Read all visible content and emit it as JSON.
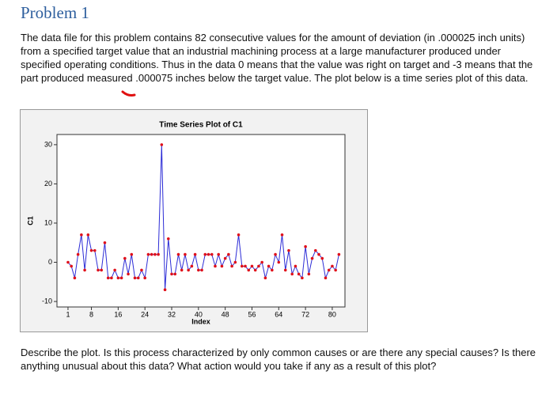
{
  "header": {
    "title": "Problem 1"
  },
  "intro": "The data file for this problem contains 82 consecutive values for the amount of deviation (in .000025 inch units) from a specified target value that an industrial machining process at a large manufacturer produced under specified operating conditions.  Thus in the data 0 means that the value was right on target and -3 means that the part produced measured .000075 inches below the target value.  The plot below is a time series plot of this data.",
  "chart_data": {
    "type": "line",
    "title": "Time Series Plot of C1",
    "x_label": "Index",
    "y_label": "C1",
    "line_color": "#2b2bd6",
    "marker_color": "#e0101a",
    "x": [
      1,
      2,
      3,
      4,
      5,
      6,
      7,
      8,
      9,
      10,
      11,
      12,
      13,
      14,
      15,
      16,
      17,
      18,
      19,
      20,
      21,
      22,
      23,
      24,
      25,
      26,
      27,
      28,
      29,
      30,
      31,
      32,
      33,
      34,
      35,
      36,
      37,
      38,
      39,
      40,
      41,
      42,
      43,
      44,
      45,
      46,
      47,
      48,
      49,
      50,
      51,
      52,
      53,
      54,
      55,
      56,
      57,
      58,
      59,
      60,
      61,
      62,
      63,
      64,
      65,
      66,
      67,
      68,
      69,
      70,
      71,
      72,
      73,
      74,
      75,
      76,
      77,
      78,
      79,
      80,
      81,
      82
    ],
    "values": [
      0,
      -1,
      -4,
      2,
      7,
      -2,
      7,
      3,
      3,
      -2,
      -2,
      5,
      -4,
      -4,
      -2,
      -4,
      -4,
      1,
      -3,
      2,
      -4,
      -4,
      -2,
      -4,
      2,
      2,
      2,
      2,
      30,
      -7,
      6,
      -3,
      -3,
      2,
      -2,
      2,
      -2,
      -1,
      2,
      -2,
      -2,
      2,
      2,
      2,
      -1,
      2,
      -1,
      1,
      2,
      -1,
      0,
      7,
      -1,
      -1,
      -2,
      -1,
      -2,
      -1,
      0,
      -4,
      -1,
      -2,
      2,
      0,
      7,
      -2,
      3,
      -3,
      -1,
      -3,
      -4,
      4,
      -3,
      1,
      3,
      2,
      1,
      -4,
      -2,
      -1,
      -2,
      2
    ],
    "xlim": [
      -2.3,
      83.8
    ],
    "xticks": [
      1,
      8,
      16,
      24,
      32,
      40,
      48,
      56,
      64,
      72,
      80
    ],
    "ylim": [
      -11.4,
      32.6
    ],
    "yticks": [
      -10,
      0,
      10,
      20,
      30
    ]
  },
  "question": "Describe the plot.  Is this process characterized by only common causes or are there any special causes? Is there anything unusual about this data? What action would you take if any as a result of this plot?"
}
